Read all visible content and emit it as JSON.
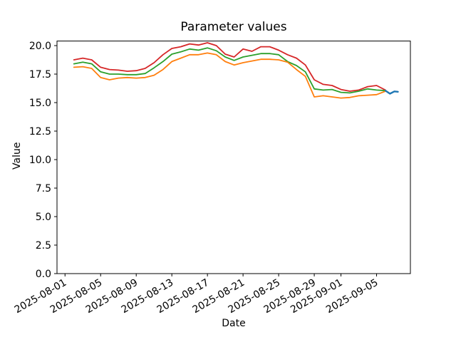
{
  "chart_data": {
    "type": "line",
    "title": "Parameter values",
    "xlabel": "Date",
    "ylabel": "Value",
    "grid": false,
    "legend": null,
    "ylim": [
      0,
      20.4
    ],
    "yticks": [
      0.0,
      2.5,
      5.0,
      7.5,
      10.0,
      12.5,
      15.0,
      17.5,
      20.0
    ],
    "x_epoch": "2025-08-01",
    "xlim_days": [
      -0.9,
      38.8
    ],
    "xticks": [
      {
        "day": 0,
        "label": "2025-08-01"
      },
      {
        "day": 4,
        "label": "2025-08-05"
      },
      {
        "day": 8,
        "label": "2025-08-09"
      },
      {
        "day": 12,
        "label": "2025-08-13"
      },
      {
        "day": 16,
        "label": "2025-08-17"
      },
      {
        "day": 20,
        "label": "2025-08-21"
      },
      {
        "day": 24,
        "label": "2025-08-25"
      },
      {
        "day": 28,
        "label": "2025-08-29"
      },
      {
        "day": 31,
        "label": "2025-09-01"
      },
      {
        "day": 35,
        "label": "2025-09-05"
      }
    ],
    "series": [
      {
        "name": "series-red",
        "color": "#d62728",
        "line_width": 1.8,
        "x_start_day": 1,
        "x_step": 1,
        "values": [
          18.75,
          18.9,
          18.75,
          18.1,
          17.9,
          17.85,
          17.75,
          17.8,
          18.0,
          18.5,
          19.2,
          19.75,
          19.9,
          20.15,
          20.05,
          20.25,
          20.0,
          19.25,
          19.0,
          19.7,
          19.5,
          19.9,
          19.9,
          19.6,
          19.2,
          18.9,
          18.3,
          17.0,
          16.6,
          16.5,
          16.15,
          16.0,
          16.1,
          16.4,
          16.5,
          16.1
        ]
      },
      {
        "name": "series-green",
        "color": "#2ca02c",
        "line_width": 1.8,
        "x_start_day": 1,
        "x_step": 1,
        "values": [
          18.4,
          18.55,
          18.4,
          17.7,
          17.5,
          17.5,
          17.45,
          17.45,
          17.55,
          18.05,
          18.6,
          19.25,
          19.45,
          19.7,
          19.6,
          19.8,
          19.55,
          19.0,
          18.7,
          19.0,
          19.15,
          19.3,
          19.3,
          19.2,
          18.6,
          18.25,
          17.7,
          16.2,
          16.1,
          16.15,
          15.9,
          15.85,
          16.0,
          16.2,
          16.1,
          16.05
        ]
      },
      {
        "name": "series-orange",
        "color": "#ff7f0e",
        "line_width": 1.8,
        "x_start_day": 1,
        "x_step": 1,
        "values": [
          18.1,
          18.15,
          18.0,
          17.2,
          17.0,
          17.15,
          17.2,
          17.15,
          17.2,
          17.4,
          17.9,
          18.6,
          18.9,
          19.2,
          19.2,
          19.35,
          19.2,
          18.6,
          18.3,
          18.5,
          18.65,
          18.8,
          18.8,
          18.75,
          18.55,
          17.9,
          17.3,
          15.5,
          15.6,
          15.5,
          15.4,
          15.45,
          15.6,
          15.65,
          15.7,
          16.0
        ]
      },
      {
        "name": "series-blue",
        "color": "#1f77b4",
        "line_width": 2.4,
        "x": [
          36,
          36.5,
          37,
          37.4
        ],
        "values": [
          16.05,
          15.78,
          15.98,
          15.95
        ]
      }
    ]
  }
}
